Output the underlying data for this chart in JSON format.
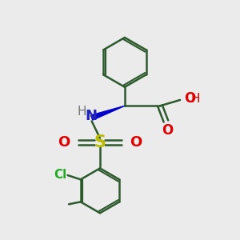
{
  "background_color": "#ebebeb",
  "bond_color": "#2d5a2d",
  "bond_width": 1.8,
  "figsize": [
    3.0,
    3.0
  ],
  "dpi": 100,
  "colors": {
    "N": "#2222bb",
    "S": "#bbbb00",
    "O": "#dd0000",
    "Cl": "#22aa22",
    "H": "#777777",
    "bond": "#2d5a2d",
    "wedge": "#0000cc"
  }
}
